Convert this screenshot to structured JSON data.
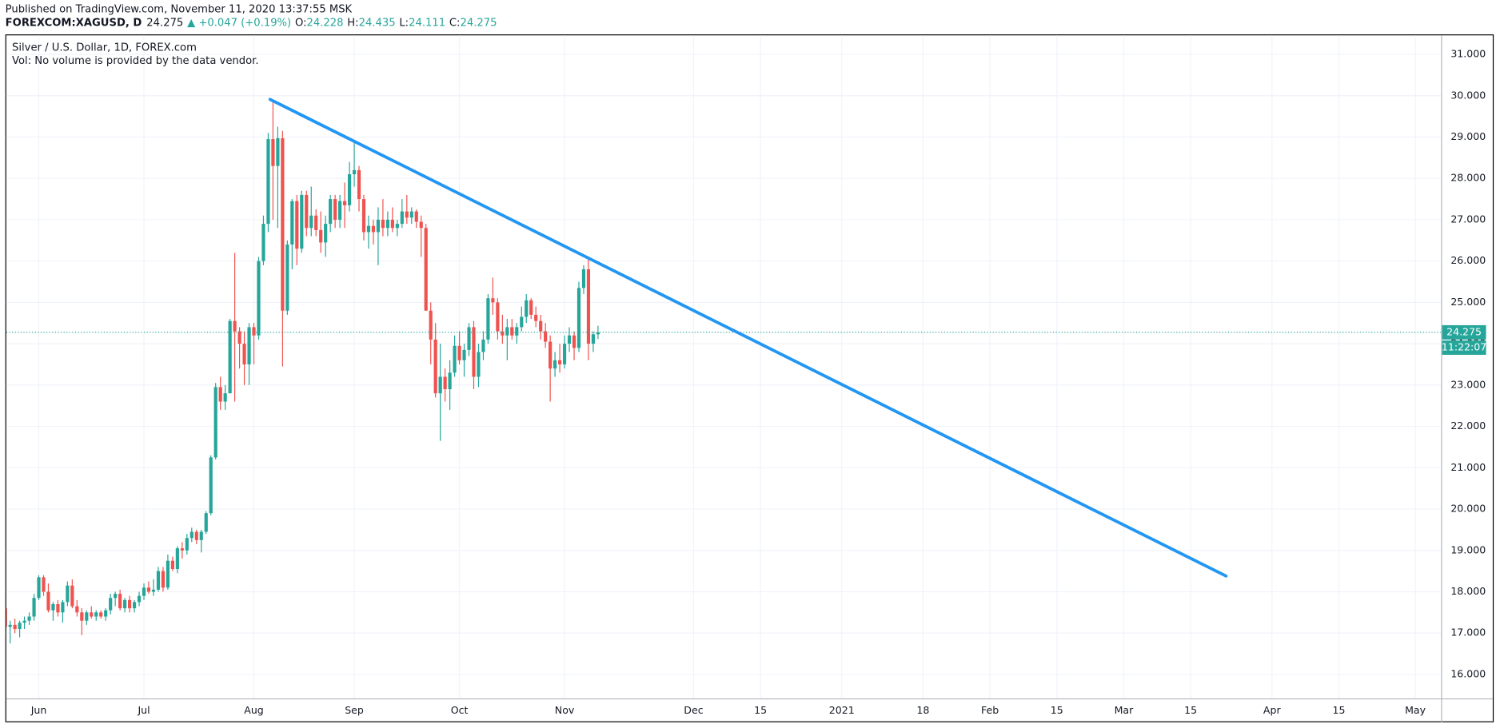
{
  "header": {
    "published": "Published on TradingView.com, November 11, 2020 13:37:55 MSK",
    "symbol": "FOREXCOM:XAGUSD, D",
    "price": "24.275",
    "change": "▲ +0.047 (+0.19%)",
    "open_label": "O:",
    "open": "24.228",
    "high_label": "H:",
    "high": "24.435",
    "low_label": "L:",
    "low": "24.111",
    "close_label": "C:",
    "close": "24.275"
  },
  "chart_data": {
    "type": "candlestick",
    "title": "Silver / U.S. Dollar, 1D, FOREX.com",
    "subtitle": "Vol: No volume is provided by the data vendor.",
    "up_color": "#26a69a",
    "down_color": "#ef5350",
    "open": [
      17.6,
      17.15,
      17.2,
      17.1,
      17.25,
      17.3,
      17.4,
      17.85,
      18.35,
      18.0,
      17.55,
      17.7,
      17.5,
      17.75,
      18.15,
      17.65,
      17.5,
      17.3,
      17.5,
      17.4,
      17.5,
      17.4,
      17.55,
      17.85,
      17.95,
      17.6,
      17.8,
      17.6,
      17.75,
      17.9,
      18.1,
      18.0,
      18.05,
      18.5,
      18.1,
      18.75,
      18.55,
      19.05,
      19.0,
      19.3,
      19.45,
      19.25,
      19.45,
      19.9,
      21.25,
      22.95,
      22.6,
      22.8,
      24.55,
      24.3,
      24.0,
      23.5,
      24.4,
      24.2,
      26.0,
      26.9,
      28.95,
      28.3,
      28.97,
      24.8,
      26.4,
      27.45,
      26.3,
      27.6,
      26.8,
      27.1,
      26.75,
      26.45,
      26.9,
      27.5,
      27.0,
      27.45,
      27.35,
      28.1,
      28.2,
      27.5,
      26.7,
      26.85,
      26.7,
      27.0,
      26.8,
      27.0,
      26.8,
      26.9,
      27.2,
      27.05,
      27.2,
      26.95,
      26.8,
      24.8,
      24.1,
      22.8,
      23.2,
      22.9,
      23.3,
      23.95,
      23.6,
      23.85,
      24.4,
      23.2,
      23.8,
      24.1,
      25.1,
      25.0,
      24.3,
      24.2,
      24.4,
      24.2,
      24.4,
      24.65,
      25.05,
      24.7,
      24.55,
      24.3,
      24.05,
      23.4,
      23.6,
      23.5,
      24.0,
      24.2,
      23.9,
      25.35,
      25.8,
      24.0,
      24.228
    ],
    "high": [
      17.7,
      17.3,
      17.35,
      17.3,
      17.4,
      17.5,
      17.95,
      18.4,
      18.4,
      18.2,
      17.75,
      17.8,
      17.8,
      18.25,
      18.3,
      17.8,
      17.6,
      17.55,
      17.65,
      17.55,
      17.55,
      17.6,
      17.95,
      18.0,
      18.05,
      17.85,
      17.9,
      17.8,
      18.0,
      18.2,
      18.25,
      18.3,
      18.6,
      18.6,
      18.9,
      18.85,
      19.1,
      19.2,
      19.4,
      19.55,
      19.5,
      19.5,
      19.95,
      21.3,
      23.05,
      23.2,
      23.0,
      24.6,
      26.2,
      24.4,
      24.3,
      24.5,
      24.5,
      26.1,
      27.1,
      29.1,
      29.85,
      29.25,
      29.15,
      26.5,
      27.5,
      27.6,
      27.7,
      27.7,
      27.8,
      27.25,
      27.2,
      27.1,
      27.6,
      27.6,
      27.6,
      27.9,
      28.4,
      28.9,
      28.3,
      27.6,
      27.1,
      27.0,
      27.3,
      27.5,
      27.2,
      27.3,
      27.0,
      27.5,
      27.6,
      27.3,
      27.25,
      27.1,
      26.9,
      25.0,
      24.5,
      24.0,
      23.4,
      23.6,
      24.2,
      24.3,
      24.0,
      24.5,
      24.55,
      24.0,
      24.3,
      25.2,
      25.6,
      25.1,
      24.7,
      24.6,
      24.6,
      24.5,
      24.9,
      25.2,
      25.1,
      24.9,
      24.7,
      24.5,
      24.2,
      23.8,
      24.0,
      24.2,
      24.4,
      24.3,
      25.5,
      25.9,
      26.05,
      24.3,
      24.435
    ],
    "low": [
      17.1,
      16.75,
      17.0,
      16.9,
      17.1,
      17.2,
      17.3,
      17.8,
      17.9,
      17.5,
      17.3,
      17.4,
      17.25,
      17.65,
      17.6,
      17.4,
      16.95,
      17.2,
      17.35,
      17.3,
      17.35,
      17.3,
      17.45,
      17.65,
      17.55,
      17.5,
      17.5,
      17.5,
      17.65,
      17.8,
      17.95,
      17.9,
      18.0,
      18.0,
      18.05,
      18.5,
      18.45,
      18.8,
      18.9,
      19.2,
      19.15,
      18.95,
      19.4,
      19.85,
      21.2,
      22.4,
      22.4,
      22.8,
      22.6,
      23.4,
      23.0,
      23.0,
      23.5,
      24.1,
      25.9,
      26.7,
      27.0,
      26.8,
      23.45,
      24.7,
      25.8,
      25.9,
      26.2,
      26.6,
      26.6,
      26.6,
      26.2,
      26.1,
      26.7,
      26.8,
      26.8,
      26.8,
      27.2,
      27.8,
      27.2,
      26.5,
      26.3,
      26.4,
      25.9,
      26.6,
      26.6,
      26.7,
      26.6,
      26.8,
      26.9,
      26.9,
      26.8,
      26.1,
      24.8,
      23.5,
      22.7,
      21.65,
      22.6,
      22.4,
      23.2,
      23.5,
      23.2,
      23.7,
      22.9,
      22.95,
      23.6,
      24.0,
      24.7,
      24.1,
      24.0,
      23.6,
      24.1,
      24.0,
      24.3,
      24.5,
      24.6,
      24.4,
      24.1,
      23.9,
      22.6,
      23.2,
      23.3,
      23.4,
      23.8,
      23.6,
      23.8,
      25.2,
      23.6,
      23.8,
      24.111
    ],
    "close": [
      17.15,
      17.2,
      17.1,
      17.25,
      17.3,
      17.4,
      17.85,
      18.35,
      18.0,
      17.55,
      17.7,
      17.5,
      17.75,
      18.15,
      17.65,
      17.5,
      17.3,
      17.5,
      17.4,
      17.5,
      17.4,
      17.55,
      17.85,
      17.95,
      17.6,
      17.8,
      17.6,
      17.75,
      17.9,
      18.1,
      18.0,
      18.05,
      18.5,
      18.1,
      18.75,
      18.55,
      19.05,
      19.0,
      19.3,
      19.45,
      19.25,
      19.45,
      19.9,
      21.25,
      22.95,
      22.6,
      22.8,
      24.55,
      24.3,
      24.0,
      23.5,
      24.4,
      24.2,
      26.0,
      26.9,
      28.95,
      28.3,
      28.97,
      24.8,
      26.4,
      27.45,
      26.3,
      27.6,
      26.8,
      27.1,
      26.75,
      26.45,
      26.9,
      27.5,
      27.0,
      27.45,
      27.35,
      28.1,
      28.2,
      27.5,
      26.7,
      26.85,
      26.7,
      27.0,
      26.8,
      27.0,
      26.8,
      26.9,
      27.2,
      27.05,
      27.2,
      26.95,
      26.8,
      24.8,
      24.1,
      22.8,
      23.2,
      22.9,
      23.3,
      23.95,
      23.6,
      23.85,
      24.4,
      23.2,
      23.8,
      24.1,
      25.1,
      25.0,
      24.3,
      24.2,
      24.4,
      24.2,
      24.4,
      24.65,
      25.05,
      24.7,
      24.55,
      24.3,
      24.05,
      23.4,
      23.6,
      23.5,
      24.0,
      24.2,
      23.9,
      25.35,
      25.8,
      24.0,
      24.228,
      24.275
    ],
    "xlim": [
      0.2,
      300.4
    ],
    "xticks": [
      {
        "value": 7,
        "label": "Jun"
      },
      {
        "value": 29,
        "label": "Jul"
      },
      {
        "value": 52,
        "label": "Aug"
      },
      {
        "value": 73,
        "label": "Sep"
      },
      {
        "value": 95,
        "label": "Oct"
      },
      {
        "value": 117,
        "label": "Nov"
      },
      {
        "value": 144,
        "label": "Dec"
      },
      {
        "value": 158,
        "label": "15"
      },
      {
        "value": 175,
        "label": "2021"
      },
      {
        "value": 192,
        "label": "18"
      },
      {
        "value": 206,
        "label": "Feb"
      },
      {
        "value": 220,
        "label": "15"
      },
      {
        "value": 234,
        "label": "Mar"
      },
      {
        "value": 248,
        "label": "15"
      },
      {
        "value": 265,
        "label": "Apr"
      },
      {
        "value": 279,
        "label": "15"
      },
      {
        "value": 295,
        "label": "May"
      }
    ],
    "ylim": [
      15.42,
      31.46
    ],
    "yticks": [
      {
        "value": 16,
        "label": "16.000"
      },
      {
        "value": 17,
        "label": "17.000"
      },
      {
        "value": 18,
        "label": "18.000"
      },
      {
        "value": 19,
        "label": "19.000"
      },
      {
        "value": 20,
        "label": "20.000"
      },
      {
        "value": 21,
        "label": "21.000"
      },
      {
        "value": 22,
        "label": "22.000"
      },
      {
        "value": 23,
        "label": "23.000"
      },
      {
        "value": 24,
        "label": "24.000"
      },
      {
        "value": 25,
        "label": "25.000"
      },
      {
        "value": 26,
        "label": "26.000"
      },
      {
        "value": 27,
        "label": "27.000"
      },
      {
        "value": 28,
        "label": "28.000"
      },
      {
        "value": 29,
        "label": "29.000"
      },
      {
        "value": 30,
        "label": "30.000"
      },
      {
        "value": 31,
        "label": "31.000"
      }
    ],
    "grid": true,
    "trendline": {
      "x": [
        55.4,
        255.4
      ],
      "y": [
        29.91,
        18.38
      ],
      "color": "#2196f3"
    },
    "last_price": 24.275,
    "countdown": "11:22:07"
  }
}
